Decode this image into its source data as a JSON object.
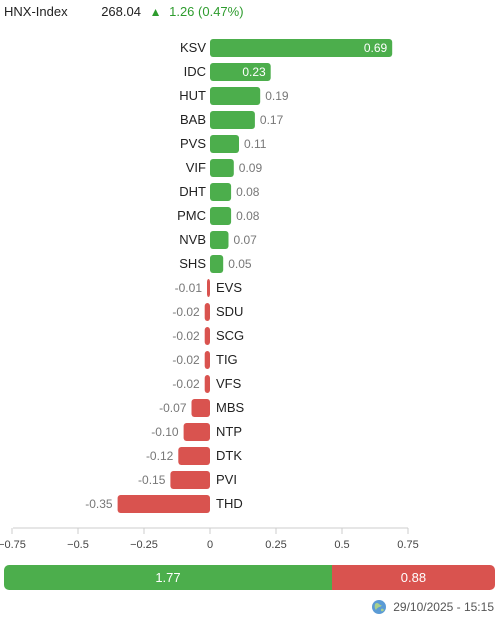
{
  "header": {
    "index_name": "HNX-Index",
    "index_value": "268.04",
    "change_arrow": "▲",
    "change_text": "1.26 (0.47%)",
    "up_color": "#2e9c2e"
  },
  "colors": {
    "positive_bar": "#4cae4c",
    "negative_bar": "#d9534f",
    "positive_summary": "#4cae4c",
    "negative_summary": "#d9534f"
  },
  "chart_data": {
    "type": "bar",
    "orientation": "horizontal",
    "categories": [
      "KSV",
      "IDC",
      "HUT",
      "BAB",
      "PVS",
      "VIF",
      "DHT",
      "PMC",
      "NVB",
      "SHS",
      "EVS",
      "SDU",
      "SCG",
      "TIG",
      "VFS",
      "MBS",
      "NTP",
      "DTK",
      "PVI",
      "THD"
    ],
    "values": [
      0.69,
      0.23,
      0.19,
      0.17,
      0.11,
      0.09,
      0.08,
      0.08,
      0.07,
      0.05,
      -0.01,
      -0.02,
      -0.02,
      -0.02,
      -0.02,
      -0.07,
      -0.1,
      -0.12,
      -0.15,
      -0.35
    ],
    "value_labels": [
      "0.69",
      "0.23",
      "0.19",
      "0.17",
      "0.11",
      "0.09",
      "0.08",
      "0.08",
      "0.07",
      "0.05",
      "-0.01",
      "-0.02",
      "-0.02",
      "-0.02",
      "-0.02",
      "-0.07",
      "-0.10",
      "-0.12",
      "-0.15",
      "-0.35"
    ],
    "xlim": [
      -0.75,
      0.75
    ],
    "x_ticks": [
      -0.75,
      -0.5,
      -0.25,
      0,
      0.25,
      0.5,
      0.75
    ],
    "x_tick_labels": [
      "−0.75",
      "−0.5",
      "−0.25",
      "0",
      "0.25",
      "0.5",
      "0.75"
    ],
    "grid": false,
    "legend": "none"
  },
  "summary": {
    "positive_value": 1.77,
    "negative_value": 0.88,
    "positive_label": "1.77",
    "negative_label": "0.88"
  },
  "footer": {
    "icon": "globe-icon",
    "timestamp": "29/10/2025 - 15:15"
  }
}
